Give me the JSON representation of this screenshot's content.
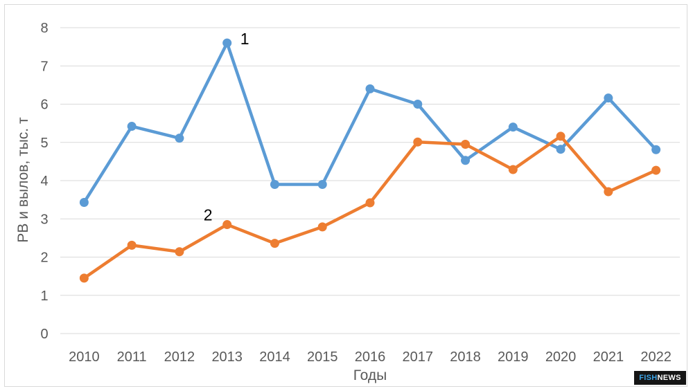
{
  "chart_data": {
    "type": "line",
    "title": "",
    "xlabel": "Годы",
    "ylabel": "РВ и вылов, тыс. т",
    "x": [
      "2010",
      "2011",
      "2012",
      "2013",
      "2014",
      "2015",
      "2016",
      "2017",
      "2018",
      "2019",
      "2020",
      "2021",
      "2022"
    ],
    "ylim": [
      0,
      8
    ],
    "yticks": [
      "0",
      "1",
      "2",
      "3",
      "4",
      "5",
      "6",
      "7",
      "8"
    ],
    "grid": true,
    "legend": "none",
    "series": [
      {
        "name": "1",
        "color": "#5b9bd5",
        "values": [
          3.43,
          5.42,
          5.11,
          7.6,
          3.9,
          3.9,
          6.4,
          6.0,
          4.53,
          5.4,
          4.82,
          6.16,
          4.81
        ]
      },
      {
        "name": "2",
        "color": "#ed7d31",
        "values": [
          1.45,
          2.31,
          2.14,
          2.85,
          2.36,
          2.79,
          3.42,
          5.01,
          4.95,
          4.29,
          5.16,
          3.71,
          4.27
        ]
      }
    ]
  },
  "watermark": {
    "part1": "FISH",
    "part2": "NEWS"
  }
}
